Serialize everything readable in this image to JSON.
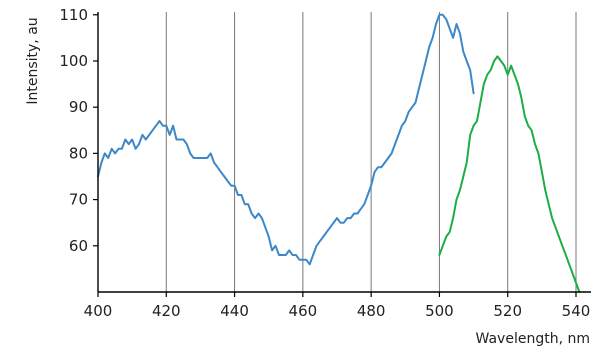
{
  "chart_data": {
    "type": "line",
    "title": "",
    "xlabel": "Wavelength, nm",
    "ylabel": "Intensity, au",
    "xlim": [
      400,
      544
    ],
    "ylim": [
      50,
      110.6
    ],
    "x_ticks": [
      400,
      420,
      440,
      460,
      480,
      500,
      520,
      540
    ],
    "y_ticks": [
      60,
      70,
      80,
      90,
      100,
      110
    ],
    "grid": "vertical",
    "legend": "none",
    "series": [
      {
        "color": "#3d88c8",
        "x": [
          400,
          401,
          402,
          403,
          404,
          405,
          406,
          407,
          408,
          409,
          410,
          411,
          412,
          413,
          414,
          415,
          416,
          417,
          418,
          419,
          420,
          421,
          422,
          423,
          424,
          425,
          426,
          427,
          428,
          429,
          430,
          431,
          432,
          433,
          434,
          435,
          436,
          437,
          438,
          439,
          440,
          441,
          442,
          443,
          444,
          445,
          446,
          447,
          448,
          449,
          450,
          451,
          452,
          453,
          454,
          455,
          456,
          457,
          458,
          459,
          460,
          461,
          462,
          463,
          464,
          465,
          466,
          467,
          468,
          469,
          470,
          471,
          472,
          473,
          474,
          475,
          476,
          477,
          478,
          479,
          480,
          481,
          482,
          483,
          484,
          485,
          486,
          487,
          488,
          489,
          490,
          491,
          492,
          493,
          494,
          495,
          496,
          497,
          498,
          499,
          500,
          501,
          502,
          503,
          504,
          505,
          506,
          507,
          508,
          509,
          510
        ],
        "y": [
          75,
          78,
          80,
          79,
          81,
          80,
          81,
          81,
          83,
          82,
          83,
          81,
          82,
          84,
          83,
          84,
          85,
          86,
          87,
          86,
          86,
          84,
          86,
          83,
          83,
          83,
          82,
          80,
          79,
          79,
          79,
          79,
          79,
          80,
          78,
          77,
          76,
          75,
          74,
          73,
          73,
          71,
          71,
          69,
          69,
          67,
          66,
          67,
          66,
          64,
          62,
          59,
          60,
          58,
          58,
          58,
          59,
          58,
          58,
          57,
          57,
          57,
          56,
          58,
          60,
          61,
          62,
          63,
          64,
          65,
          66,
          65,
          65,
          66,
          66,
          67,
          67,
          68,
          69,
          71,
          73,
          76,
          77,
          77,
          78,
          79,
          80,
          82,
          84,
          86,
          87,
          89,
          90,
          91,
          94,
          97,
          100,
          103,
          105,
          108,
          110,
          110,
          109,
          107,
          105,
          108,
          106,
          102,
          100,
          98,
          93
        ]
      },
      {
        "color": "#1dad45",
        "x": [
          500,
          501,
          502,
          503,
          504,
          505,
          506,
          507,
          508,
          509,
          510,
          511,
          512,
          513,
          514,
          515,
          516,
          517,
          518,
          519,
          520,
          521,
          522,
          523,
          524,
          525,
          526,
          527,
          528,
          529,
          530,
          531,
          532,
          533,
          534,
          535,
          536,
          537,
          538,
          539,
          540,
          541
        ],
        "y": [
          58,
          60,
          62,
          63,
          66,
          70,
          72,
          75,
          78,
          84,
          86,
          87,
          91,
          95,
          97,
          98,
          100,
          101,
          100,
          99,
          97,
          99,
          97,
          95,
          92,
          88,
          86,
          85,
          82,
          80,
          76,
          72,
          69,
          66,
          64,
          62,
          60,
          58,
          56,
          54,
          52,
          50
        ]
      }
    ]
  }
}
